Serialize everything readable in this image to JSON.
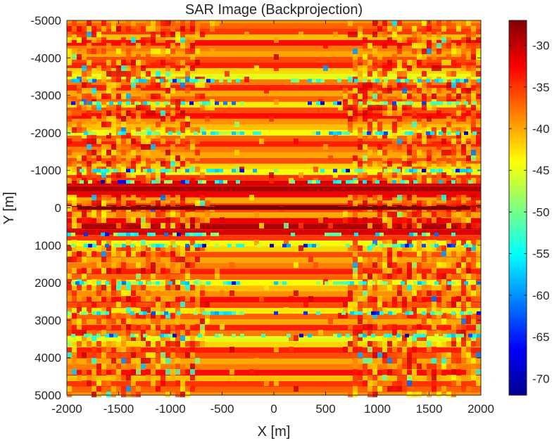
{
  "chart_data": {
    "type": "heatmap",
    "title": "SAR Image (Backprojection)",
    "xlabel": "X [m]",
    "ylabel": "Y [m]",
    "xlim": [
      -2000,
      2000
    ],
    "ylim": [
      -5000,
      5000
    ],
    "y_direction": "reverse",
    "x_ticks": [
      -2000,
      -1500,
      -1000,
      -500,
      0,
      500,
      1000,
      1500,
      2000
    ],
    "x_tick_labels": [
      "-2000",
      "-1500",
      "-1000",
      "-500",
      "0",
      "500",
      "1000",
      "1500",
      "2000"
    ],
    "y_ticks": [
      -5000,
      -4000,
      -3000,
      -2000,
      -1000,
      0,
      1000,
      2000,
      3000,
      4000,
      5000
    ],
    "y_tick_labels": [
      "-5000",
      "-4000",
      "-3000",
      "-2000",
      "-1000",
      "0",
      "1000",
      "2000",
      "3000",
      "4000",
      "5000"
    ],
    "colormap": "jet",
    "clim": [
      -72,
      -27
    ],
    "colorbar": {
      "location": "right",
      "ticks": [
        -30,
        -35,
        -40,
        -45,
        -50,
        -55,
        -60,
        -65,
        -70
      ],
      "tick_labels": [
        "-30",
        "-35",
        "-40",
        "-45",
        "-50",
        "-55",
        "-60",
        "-65",
        "-70"
      ]
    },
    "bands_y_m": [
      {
        "y": -5000,
        "db": -39
      },
      {
        "y": -4850,
        "db": -37
      },
      {
        "y": -4700,
        "db": -35
      },
      {
        "y": -4550,
        "db": -41
      },
      {
        "y": -4400,
        "db": -33
      },
      {
        "y": -4250,
        "db": -38
      },
      {
        "y": -4100,
        "db": -40
      },
      {
        "y": -3950,
        "db": -36
      },
      {
        "y": -3800,
        "db": -34
      },
      {
        "y": -3650,
        "db": -42
      },
      {
        "y": -3500,
        "db": -45
      },
      {
        "y": -3350,
        "db": -38
      },
      {
        "y": -3200,
        "db": -34
      },
      {
        "y": -3050,
        "db": -40
      },
      {
        "y": -2900,
        "db": -37
      },
      {
        "y": -2750,
        "db": -43
      },
      {
        "y": -2600,
        "db": -36
      },
      {
        "y": -2450,
        "db": -33
      },
      {
        "y": -2300,
        "db": -39
      },
      {
        "y": -2150,
        "db": -41
      },
      {
        "y": -2000,
        "db": -44
      },
      {
        "y": -1850,
        "db": -37
      },
      {
        "y": -1700,
        "db": -34
      },
      {
        "y": -1550,
        "db": -38
      },
      {
        "y": -1400,
        "db": -40
      },
      {
        "y": -1250,
        "db": -36
      },
      {
        "y": -1100,
        "db": -42
      },
      {
        "y": -950,
        "db": -44
      },
      {
        "y": -800,
        "db": -35
      },
      {
        "y": -650,
        "db": -31
      },
      {
        "y": -500,
        "db": -29
      },
      {
        "y": -350,
        "db": -32
      },
      {
        "y": -200,
        "db": -40
      },
      {
        "y": -50,
        "db": -36
      },
      {
        "y": 0,
        "db": -27
      },
      {
        "y": 50,
        "db": -36
      },
      {
        "y": 200,
        "db": -40
      },
      {
        "y": 350,
        "db": -32
      },
      {
        "y": 500,
        "db": -29
      },
      {
        "y": 650,
        "db": -31
      },
      {
        "y": 800,
        "db": -35
      },
      {
        "y": 950,
        "db": -44
      },
      {
        "y": 1100,
        "db": -42
      },
      {
        "y": 1250,
        "db": -36
      },
      {
        "y": 1400,
        "db": -40
      },
      {
        "y": 1550,
        "db": -38
      },
      {
        "y": 1700,
        "db": -34
      },
      {
        "y": 1850,
        "db": -37
      },
      {
        "y": 2000,
        "db": -44
      },
      {
        "y": 2150,
        "db": -41
      },
      {
        "y": 2300,
        "db": -39
      },
      {
        "y": 2450,
        "db": -33
      },
      {
        "y": 2600,
        "db": -36
      },
      {
        "y": 2750,
        "db": -43
      },
      {
        "y": 2900,
        "db": -37
      },
      {
        "y": 3050,
        "db": -40
      },
      {
        "y": 3200,
        "db": -34
      },
      {
        "y": 3350,
        "db": -38
      },
      {
        "y": 3500,
        "db": -45
      },
      {
        "y": 3650,
        "db": -42
      },
      {
        "y": 3800,
        "db": -34
      },
      {
        "y": 3950,
        "db": -36
      },
      {
        "y": 4100,
        "db": -40
      },
      {
        "y": 4250,
        "db": -38
      },
      {
        "y": 4400,
        "db": -33
      },
      {
        "y": 4550,
        "db": -41
      },
      {
        "y": 4700,
        "db": -35
      },
      {
        "y": 4850,
        "db": -37
      },
      {
        "y": 5000,
        "db": -39
      }
    ],
    "noise_bands_y_m": [
      -3400,
      -2800,
      -2000,
      -1000,
      -700,
      700,
      1000,
      2000,
      2800,
      3400
    ],
    "central_strip": {
      "y": 0,
      "x_range": [
        -1900,
        1900
      ],
      "db": -27
    }
  }
}
